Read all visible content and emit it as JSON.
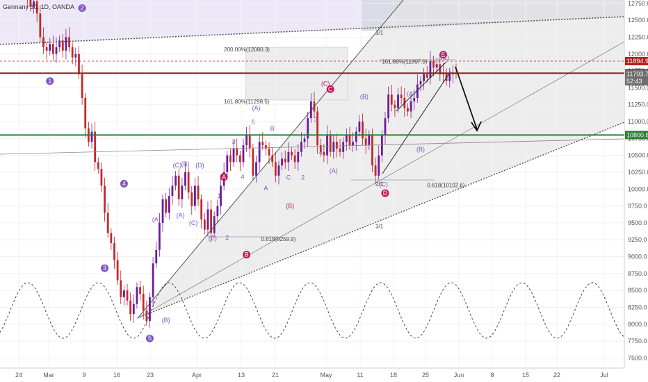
{
  "window": {
    "title": "Germany 30, 1D, OANDA"
  },
  "chart_data": {
    "type": "candlestick",
    "instrument": "Germany 30",
    "source": "OANDA",
    "y_axis": {
      "ticks": [
        12750.0,
        12500.0,
        12250.0,
        12000.0,
        11750.0,
        11500.0,
        11250.0,
        11000.0,
        10750.0,
        10500.0,
        10250.0,
        10000.0,
        9750.0,
        9500.0,
        9250.0,
        9000.0,
        8750.0,
        8500.0,
        8250.0,
        8000.0,
        7750.0,
        7500.0
      ],
      "tick_labels": [
        "12750.0",
        "12500.0",
        "12250.0",
        "12000.0",
        "11750.0",
        "11500.0",
        "11250.0",
        "11000.0",
        "10750.0",
        "10500.0",
        "10250.0",
        "10000.0",
        "9750.0",
        "9500.0",
        "9250.0",
        "9000.0",
        "8750.0",
        "8500.0",
        "8250.0",
        "8000.0",
        "7750.0",
        "7500.0"
      ],
      "range": [
        7350,
        12800
      ]
    },
    "x_axis": {
      "tick_labels": [
        "24",
        "Mar",
        "9",
        "16",
        "23",
        "Apr",
        "13",
        "21",
        "May",
        "11",
        "18",
        "25",
        "Jun",
        "8",
        "15",
        "22",
        "Jul"
      ],
      "range": [
        0,
        190
      ]
    },
    "price_tags": [
      {
        "value": 11894.9,
        "label": "11894.9",
        "color": "#b71c1c",
        "style": "dashed"
      },
      {
        "value": 11715.8,
        "label": "11715.8",
        "color": "#8b1a1a",
        "style": "solid"
      },
      {
        "value": 11703.7,
        "label": "11703.7",
        "color": "#6e6e6e",
        "style": "none"
      },
      {
        "value": 11597.0,
        "label": "52:43",
        "color": "#6e6e6e",
        "style": "none"
      },
      {
        "value": 10800.8,
        "label": "10800.8",
        "color": "#2e7d32",
        "style": "solid"
      }
    ],
    "wave_labels": [
      {
        "text": "1",
        "x": 9,
        "y": 11600,
        "type": "circle",
        "color": "#7e57c2"
      },
      {
        "text": "2",
        "x": 19,
        "y": 12680,
        "type": "circle",
        "color": "#7e57c2"
      },
      {
        "text": "3",
        "x": 26,
        "y": 8830,
        "type": "circle",
        "color": "#7e57c2"
      },
      {
        "text": "4",
        "x": 32,
        "y": 10080,
        "type": "circle",
        "color": "#7e57c2"
      },
      {
        "text": "5",
        "x": 40,
        "y": 7790,
        "type": "circle",
        "color": "#7e57c2"
      },
      {
        "text": "A",
        "x": 63,
        "y": 10180,
        "type": "circle",
        "color": "#c2185b"
      },
      {
        "text": "B",
        "x": 70,
        "y": 9030,
        "type": "circle",
        "color": "#c2185b"
      },
      {
        "text": "C",
        "x": 96,
        "y": 11480,
        "type": "circle",
        "color": "#c2185b"
      },
      {
        "text": "D",
        "x": 113,
        "y": 9940,
        "type": "circle",
        "color": "#c2185b"
      },
      {
        "text": "E",
        "x": 131,
        "y": 11990,
        "type": "circle",
        "color": "#c2185b"
      },
      {
        "text": "(A)",
        "x": 42,
        "y": 9520,
        "type": "text",
        "color": "#7e57c2"
      },
      {
        "text": "(C)",
        "x": 48.5,
        "y": 10320,
        "type": "text",
        "color": "#7e57c2"
      },
      {
        "text": "(B)",
        "x": 51,
        "y": 10340,
        "type": "text",
        "color": "#7e57c2"
      },
      {
        "text": "(D)",
        "x": 55.5,
        "y": 10320,
        "type": "text",
        "color": "#7e57c2"
      },
      {
        "text": "(A)",
        "x": 49.5,
        "y": 9580,
        "type": "text",
        "color": "#7e57c2"
      },
      {
        "text": "(C)",
        "x": 53.5,
        "y": 9470,
        "type": "text",
        "color": "#7e57c2"
      },
      {
        "text": "(E)",
        "x": 59.5,
        "y": 9240,
        "type": "text",
        "color": "#7e57c2"
      },
      {
        "text": "(B)",
        "x": 45,
        "y": 8030,
        "type": "text",
        "color": "#7e57c2"
      },
      {
        "text": "1",
        "x": 61.5,
        "y": 9870,
        "type": "text",
        "color": "#7e57c2"
      },
      {
        "text": "2",
        "x": 64,
        "y": 9250,
        "type": "text",
        "color": "#7e57c2"
      },
      {
        "text": "3",
        "x": 66,
        "y": 10670,
        "type": "text",
        "color": "#7e57c2"
      },
      {
        "text": "4",
        "x": 68.8,
        "y": 10150,
        "type": "text",
        "color": "#7e57c2"
      },
      {
        "text": "5",
        "x": 72,
        "y": 10960,
        "type": "text",
        "color": "#7e57c2"
      },
      {
        "text": "A",
        "x": 76,
        "y": 9980,
        "type": "text",
        "color": "#7e57c2"
      },
      {
        "text": "B",
        "x": 78,
        "y": 10860,
        "type": "text",
        "color": "#7e57c2"
      },
      {
        "text": "(A)",
        "x": 73,
        "y": 11170,
        "type": "text",
        "color": "#7e57c2"
      },
      {
        "text": "C",
        "x": 83,
        "y": 10140,
        "type": "text",
        "color": "#7e57c2"
      },
      {
        "text": "2",
        "x": 87.5,
        "y": 10140,
        "type": "text",
        "color": "#7e57c2"
      },
      {
        "text": "3",
        "x": 91.5,
        "y": 11000,
        "type": "text",
        "color": "#7e57c2"
      },
      {
        "text": "4",
        "x": 93,
        "y": 10510,
        "type": "text",
        "color": "#7e57c2"
      },
      {
        "text": "(C)",
        "x": 94.5,
        "y": 11530,
        "type": "text",
        "color": "#c2185b"
      },
      {
        "text": "(B)",
        "x": 83.5,
        "y": 9720,
        "type": "text",
        "color": "#c2185b"
      },
      {
        "text": "(A)",
        "x": 97,
        "y": 10240,
        "type": "text",
        "color": "#7e57c2"
      },
      {
        "text": "(B)",
        "x": 106.5,
        "y": 11340,
        "type": "text",
        "color": "#7e57c2"
      },
      {
        "text": "(C)",
        "x": 112.5,
        "y": 10040,
        "type": "text",
        "color": "#7e57c2"
      },
      {
        "text": "(A)",
        "x": 121,
        "y": 11380,
        "type": "text",
        "color": "#7e57c2"
      },
      {
        "text": "(B)",
        "x": 124,
        "y": 10560,
        "type": "text",
        "color": "#7e57c2"
      },
      {
        "text": "(C)",
        "x": 131.5,
        "y": 11920,
        "type": "text",
        "color": "#7e57c2"
      }
    ],
    "annotations": [
      {
        "text": "200.00%(12080.3)",
        "x": 63,
        "y": 12040
      },
      {
        "text": "161.80%(11897.9)",
        "x": 112,
        "y": 11860
      },
      {
        "text": "161.80%(11298.5)",
        "x": 63,
        "y": 11270
      },
      {
        "text": "0.618(9259.9)",
        "x": 74.5,
        "y": 9230
      },
      {
        "text": "0.618(10102.6)",
        "x": 126,
        "y": 10030
      },
      {
        "text": "1/1",
        "x": 110,
        "y": 12290
      },
      {
        "text": "2/1",
        "x": 110,
        "y": 10050
      },
      {
        "text": "3/1",
        "x": 110,
        "y": 9420
      }
    ],
    "series": [
      {
        "name": "",
        "x": [
          0,
          1,
          2,
          3,
          4,
          5,
          6,
          7,
          8,
          9,
          10,
          11,
          12,
          13,
          14,
          15,
          16,
          17,
          18,
          19,
          20,
          21,
          22,
          23,
          24,
          25,
          26,
          27,
          28,
          29,
          30,
          31,
          32,
          33,
          34,
          35,
          36,
          37,
          38,
          39,
          40,
          41,
          42,
          43,
          44,
          45,
          46,
          47,
          48,
          49,
          50,
          51,
          52,
          53,
          54,
          55,
          56,
          57,
          58,
          59,
          60,
          61,
          62,
          63,
          64,
          65,
          66,
          67,
          68,
          69,
          70,
          71,
          72,
          73,
          74,
          75,
          76,
          77,
          78,
          79,
          80,
          81,
          82,
          83,
          84,
          85,
          86,
          87,
          88,
          89,
          90,
          91,
          92,
          93,
          94,
          95,
          96,
          97,
          98,
          99,
          100,
          101,
          102,
          103,
          104,
          105,
          106,
          107,
          108,
          109,
          110,
          111,
          112,
          113,
          114,
          115,
          116,
          117,
          118,
          119,
          120,
          121,
          122,
          123,
          124,
          125,
          126,
          127,
          128,
          129,
          130,
          131,
          132,
          133,
          134,
          135
        ],
        "open": [
          13050,
          13000,
          12950,
          12820,
          12700,
          12780,
          12600,
          12250,
          12100,
          12050,
          12150,
          12000,
          12100,
          12200,
          12050,
          12250,
          12100,
          11950,
          12000,
          11700,
          11350,
          10900,
          10700,
          10850,
          10400,
          10300,
          10050,
          9650,
          9350,
          9200,
          8950,
          8650,
          8400,
          8500,
          8350,
          8150,
          8300,
          8550,
          8450,
          8200,
          8050,
          8400,
          8900,
          9100,
          9500,
          9850,
          9650,
          9900,
          10050,
          10200,
          9850,
          10050,
          10250,
          9950,
          9750,
          10050,
          9850,
          9550,
          9400,
          9700,
          9350,
          9600,
          9750,
          10050,
          10250,
          10500,
          10400,
          10600,
          10500,
          10400,
          10650,
          10800,
          10600,
          10200,
          10400,
          10700,
          10650,
          10600,
          10500,
          10400,
          10200,
          10350,
          10450,
          10400,
          10550,
          10500,
          10400,
          10550,
          10700,
          10750,
          11050,
          11300,
          11150,
          10650,
          10550,
          10500,
          10800,
          10550,
          10700,
          10600,
          10550,
          10700,
          10800,
          10650,
          10700,
          10850,
          11000,
          10750,
          10650,
          10800,
          10350,
          10200,
          10500,
          10800,
          11050,
          11400,
          11250,
          11200,
          11400,
          11350,
          11200,
          11150,
          11300,
          11350,
          11550,
          11600,
          11700,
          11650,
          11900,
          11800,
          11850,
          11700,
          11720,
          11600,
          11700,
          11716
        ],
        "close": [
          13000,
          12950,
          12820,
          12700,
          12780,
          12600,
          12250,
          12100,
          12050,
          12150,
          12000,
          12100,
          12200,
          12050,
          12250,
          12100,
          11950,
          12000,
          11700,
          11350,
          10900,
          10700,
          10850,
          10400,
          10300,
          10050,
          9650,
          9350,
          9200,
          8950,
          8650,
          8400,
          8500,
          8350,
          8150,
          8300,
          8550,
          8450,
          8200,
          8050,
          8400,
          8900,
          9100,
          9500,
          9850,
          9650,
          9900,
          10050,
          10200,
          9850,
          10050,
          10250,
          9950,
          9750,
          10050,
          9850,
          9550,
          9400,
          9700,
          9350,
          9600,
          9750,
          10050,
          10250,
          10500,
          10400,
          10600,
          10500,
          10400,
          10650,
          10800,
          10600,
          10200,
          10400,
          10700,
          10650,
          10600,
          10500,
          10400,
          10200,
          10350,
          10450,
          10400,
          10550,
          10500,
          10400,
          10550,
          10700,
          10750,
          11050,
          11300,
          11150,
          10650,
          10550,
          10500,
          10800,
          10550,
          10700,
          10600,
          10550,
          10700,
          10800,
          10650,
          10700,
          10850,
          11000,
          10750,
          10650,
          10800,
          10350,
          10200,
          10500,
          10800,
          11050,
          11400,
          11250,
          11200,
          11400,
          11350,
          11200,
          11150,
          11300,
          11350,
          11550,
          11600,
          11700,
          11650,
          11900,
          11800,
          11850,
          11700,
          11720,
          11600,
          11700,
          11716,
          11704
        ]
      }
    ]
  }
}
